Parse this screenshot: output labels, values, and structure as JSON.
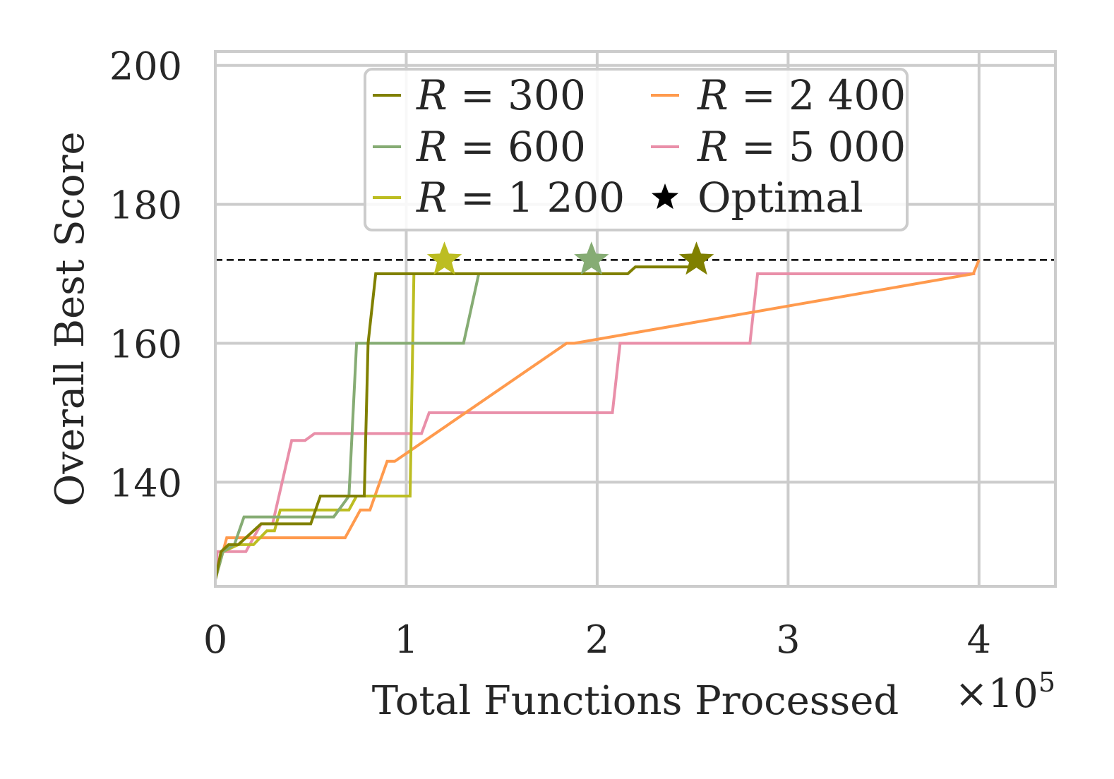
{
  "chart_data": {
    "type": "line",
    "title": "",
    "xlabel": "Total Functions Processed",
    "ylabel": "Overall Best Score",
    "x_multiplier_label": "×10",
    "x_multiplier_exp": "5",
    "xlim": [
      0,
      4.4
    ],
    "ylim": [
      125,
      202
    ],
    "x_ticks": [
      0,
      1,
      2,
      3,
      4
    ],
    "x_tick_labels": [
      "0",
      "1",
      "2",
      "3",
      "4"
    ],
    "y_ticks": [
      140,
      160,
      180,
      200
    ],
    "y_tick_labels": [
      "140",
      "160",
      "180",
      "200"
    ],
    "grid": true,
    "legend_position": "top-center",
    "optimal_score": 172,
    "optimal_label": "Optimal",
    "series": [
      {
        "name": "R = 300",
        "var": "R",
        "eq": " = ",
        "value": "300",
        "color": "#808000",
        "x": [
          0.0,
          0.03,
          0.07,
          0.12,
          0.24,
          0.5,
          0.55,
          0.78,
          0.8,
          0.84,
          2.16,
          2.2,
          2.5
        ],
        "y": [
          126,
          130,
          131,
          131,
          134,
          134,
          138,
          138,
          160,
          170,
          170,
          171,
          171
        ],
        "optimal_x": 2.52
      },
      {
        "name": "R = 600",
        "var": "R",
        "eq": " = ",
        "value": "600",
        "color": "#86ac74",
        "x": [
          0.0,
          0.04,
          0.1,
          0.15,
          0.62,
          0.7,
          0.74,
          1.3,
          1.38,
          1.9
        ],
        "y": [
          126,
          130,
          131,
          135,
          135,
          138,
          160,
          160,
          170,
          170
        ],
        "optimal_x": 1.97
      },
      {
        "name": "R = 1 200",
        "var": "R",
        "eq": " = ",
        "value": "1 200",
        "color": "#bcbd22",
        "x": [
          0.0,
          0.04,
          0.12,
          0.2,
          0.27,
          0.31,
          0.34,
          0.7,
          0.74,
          1.02,
          1.04,
          1.18
        ],
        "y": [
          126,
          130,
          131,
          131,
          133,
          133,
          136,
          136,
          138,
          138,
          170,
          170
        ],
        "optimal_x": 1.2
      },
      {
        "name": "R = 2 400",
        "var": "R",
        "eq": " = ",
        "value": "2 400",
        "color": "#ff9a4d",
        "x": [
          0.0,
          0.06,
          0.1,
          0.68,
          0.76,
          0.81,
          0.9,
          0.94,
          1.84,
          1.88,
          3.97,
          4.0
        ],
        "y": [
          126,
          132,
          132,
          132,
          136,
          136,
          143,
          143,
          160,
          160,
          170,
          172
        ],
        "optimal_x": null
      },
      {
        "name": "R = 5 000",
        "var": "R",
        "eq": " = ",
        "value": "5 000",
        "color": "#e98fa9",
        "x": [
          0.0,
          0.01,
          0.16,
          0.24,
          0.3,
          0.4,
          0.47,
          0.52,
          1.08,
          1.12,
          2.08,
          2.12,
          2.8,
          2.84,
          3.98
        ],
        "y": [
          126,
          130,
          130,
          134,
          134,
          146,
          146,
          147,
          147,
          150,
          150,
          160,
          160,
          170,
          170
        ],
        "optimal_x": null
      }
    ]
  }
}
